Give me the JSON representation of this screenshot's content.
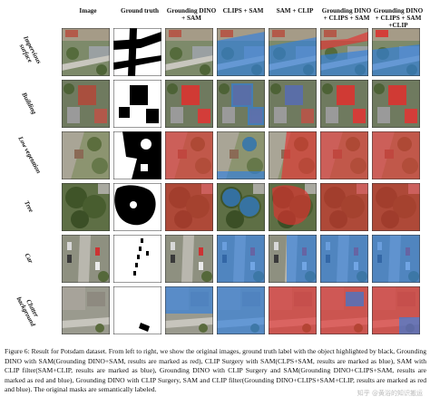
{
  "column_headers": [
    "Image",
    "Ground truth",
    "Grounding DINO + SAM",
    "CLIPS + SAM",
    "SAM + CLIP",
    "Grounding DINO + CLIPS + SAM",
    "Grounding DINO + CLIPS + SAM +CLIP"
  ],
  "rows": [
    {
      "label": "Impervious surface",
      "highlight": "blue"
    },
    {
      "label": "Building",
      "highlight": "red"
    },
    {
      "label": "Low vegetation",
      "highlight": "red"
    },
    {
      "label": "Tree",
      "highlight": "red"
    },
    {
      "label": "Car",
      "highlight": "blue"
    },
    {
      "label": "Clutter background",
      "highlight": "mixed"
    }
  ],
  "caption": "Figure 6: Result for Potsdam dataset. From left to right, we show the original images, ground truth label with the object highlighted by black, Grounding DINO with SAM(Grounding DINO+SAM, results are marked as red), CLIP Surgery with SAM(CLPS+SAM, results are marked as blue), SAM with CLIP filter(SAM+CLIP, results are marked as blue), Grounding DINO with CLIP Surgery and SAM(Grounding DINO+CLIPS+SAM, results are marked as red and blue), Grounding DINO with CLIP Surgery, SAM and CLIP filter(Grounding DINO+CLIPS+SAM+CLIP, results are marked as red and blue). The original masks are semantically labeled.",
  "watermark": "知乎 @黄浴的知识搬运",
  "colors": {
    "red_mask": "#e53030",
    "blue_mask": "#2f7fe0"
  }
}
